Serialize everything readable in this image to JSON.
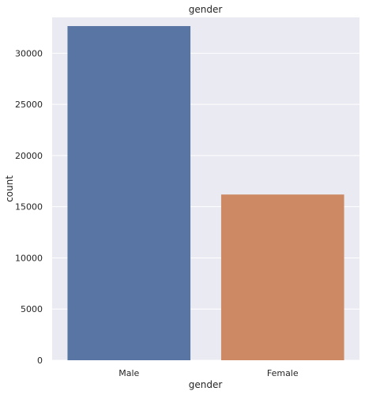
{
  "chart_data": {
    "type": "bar",
    "title": "gender",
    "xlabel": "gender",
    "ylabel": "count",
    "categories": [
      "Male",
      "Female"
    ],
    "values": [
      32650,
      16192
    ],
    "ylim": [
      0,
      33500
    ],
    "yticks": [
      0,
      5000,
      10000,
      15000,
      20000,
      25000,
      30000
    ],
    "grid": true,
    "colors": {
      "background": "#eaeaf2",
      "grid": "#ffffff",
      "bars": [
        "#5975a4",
        "#cc8963"
      ]
    }
  }
}
